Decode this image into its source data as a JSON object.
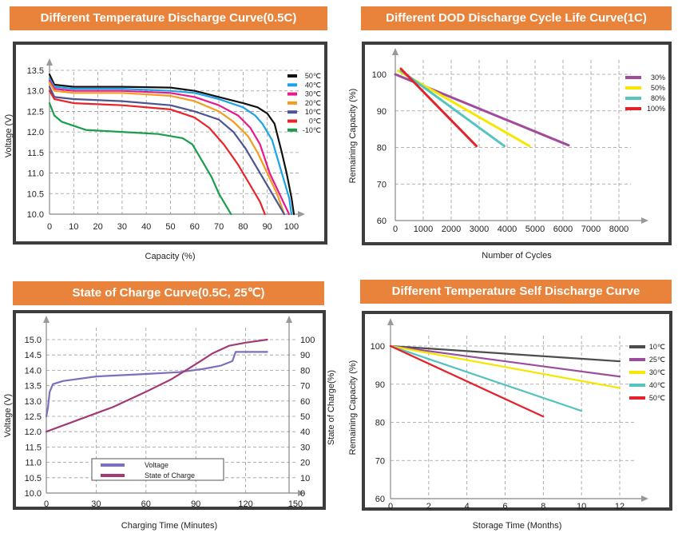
{
  "chart_data": [
    {
      "type": "line",
      "title": "Different Temperature Discharge Curve(0.5C)",
      "xlabel": "Capacity (%)",
      "ylabel": "Voltage (V)",
      "xlim": [
        0,
        105
      ],
      "ylim": [
        10.0,
        13.8
      ],
      "xticks": [
        "0",
        "10",
        "20",
        "30",
        "40",
        "50",
        "60",
        "70",
        "80",
        "90",
        "100"
      ],
      "yticks": [
        "10.0",
        "10.5",
        "11.0",
        "11.5",
        "12.0",
        "12.5",
        "13.0",
        "13.5"
      ],
      "legend": "top-right",
      "series": [
        {
          "name": "50℃",
          "color": "#111111",
          "points": [
            [
              0,
              13.4
            ],
            [
              2,
              13.15
            ],
            [
              10,
              13.1
            ],
            [
              30,
              13.1
            ],
            [
              50,
              13.08
            ],
            [
              60,
              13.0
            ],
            [
              70,
              12.85
            ],
            [
              80,
              12.7
            ],
            [
              86,
              12.6
            ],
            [
              90,
              12.45
            ],
            [
              93,
              12.2
            ],
            [
              96,
              11.5
            ],
            [
              98,
              11.0
            ],
            [
              100,
              10.4
            ],
            [
              101,
              10.0
            ]
          ]
        },
        {
          "name": "40℃",
          "color": "#1aa3e8",
          "points": [
            [
              0,
              13.3
            ],
            [
              2,
              13.1
            ],
            [
              10,
              13.05
            ],
            [
              30,
              13.05
            ],
            [
              50,
              13.0
            ],
            [
              60,
              12.95
            ],
            [
              70,
              12.8
            ],
            [
              80,
              12.6
            ],
            [
              85,
              12.4
            ],
            [
              88,
              12.2
            ],
            [
              92,
              11.8
            ],
            [
              96,
              11.0
            ],
            [
              99,
              10.4
            ],
            [
              100,
              10.0
            ]
          ]
        },
        {
          "name": "30℃",
          "color": "#e8198b",
          "points": [
            [
              0,
              13.25
            ],
            [
              2,
              13.05
            ],
            [
              10,
              13.0
            ],
            [
              30,
              13.0
            ],
            [
              50,
              12.95
            ],
            [
              60,
              12.85
            ],
            [
              70,
              12.65
            ],
            [
              78,
              12.4
            ],
            [
              83,
              12.1
            ],
            [
              87,
              11.7
            ],
            [
              91,
              11.0
            ],
            [
              95,
              10.5
            ],
            [
              99,
              10.0
            ]
          ]
        },
        {
          "name": "20℃",
          "color": "#f39c1f",
          "points": [
            [
              0,
              13.2
            ],
            [
              2,
              13.0
            ],
            [
              10,
              12.95
            ],
            [
              30,
              12.95
            ],
            [
              50,
              12.88
            ],
            [
              60,
              12.75
            ],
            [
              70,
              12.5
            ],
            [
              76,
              12.25
            ],
            [
              82,
              11.9
            ],
            [
              86,
              11.5
            ],
            [
              90,
              11.0
            ],
            [
              94,
              10.5
            ],
            [
              97,
              10.0
            ]
          ]
        },
        {
          "name": "10℃",
          "color": "#4a5592",
          "points": [
            [
              0,
              13.1
            ],
            [
              2,
              12.85
            ],
            [
              10,
              12.8
            ],
            [
              30,
              12.75
            ],
            [
              50,
              12.65
            ],
            [
              60,
              12.5
            ],
            [
              70,
              12.3
            ],
            [
              76,
              12.0
            ],
            [
              81,
              11.6
            ],
            [
              87,
              11.0
            ],
            [
              92,
              10.5
            ],
            [
              97,
              10.0
            ]
          ]
        },
        {
          "name": "0℃",
          "color": "#e8232a",
          "points": [
            [
              0,
              13.0
            ],
            [
              2,
              12.8
            ],
            [
              10,
              12.7
            ],
            [
              30,
              12.65
            ],
            [
              50,
              12.55
            ],
            [
              60,
              12.35
            ],
            [
              66,
              12.1
            ],
            [
              72,
              11.7
            ],
            [
              78,
              11.2
            ],
            [
              83,
              10.7
            ],
            [
              87,
              10.3
            ],
            [
              89,
              10.0
            ]
          ]
        },
        {
          "name": "-10℃",
          "color": "#1a9e4b",
          "points": [
            [
              0,
              12.7
            ],
            [
              2,
              12.4
            ],
            [
              5,
              12.25
            ],
            [
              15,
              12.05
            ],
            [
              30,
              12.0
            ],
            [
              45,
              11.95
            ],
            [
              55,
              11.85
            ],
            [
              59,
              11.7
            ],
            [
              63,
              11.3
            ],
            [
              67,
              10.9
            ],
            [
              70,
              10.5
            ],
            [
              73,
              10.2
            ],
            [
              75,
              10.0
            ]
          ]
        }
      ]
    },
    {
      "type": "line",
      "title": "Different DOD Discharge Cycle Life Curve(1C)",
      "xlabel": "Number of Cycles",
      "ylabel": "Remaining Capacity (%)",
      "xlim": [
        0,
        8800
      ],
      "ylim": [
        60,
        105
      ],
      "xticks": [
        "0",
        "1000",
        "2000",
        "3000",
        "4000",
        "5000",
        "6000",
        "7000",
        "8000"
      ],
      "yticks": [
        "60",
        "70",
        "80",
        "90",
        "100"
      ],
      "legend": "top-right",
      "series": [
        {
          "name": "30%",
          "color": "#a24a9c",
          "points": [
            [
              0,
              100
            ],
            [
              6200,
              80.6
            ]
          ]
        },
        {
          "name": "50%",
          "color": "#f7e600",
          "points": [
            [
              100,
              101
            ],
            [
              4800,
              80.4
            ]
          ]
        },
        {
          "name": "80%",
          "color": "#55c3c0",
          "points": [
            [
              200,
              101
            ],
            [
              3900,
              80.4
            ]
          ]
        },
        {
          "name": "100%",
          "color": "#e3232c",
          "points": [
            [
              200,
              101.5
            ],
            [
              2900,
              80.4
            ]
          ]
        }
      ]
    },
    {
      "type": "line",
      "title": "State of Charge Curve(0.5C, 25℃)",
      "xlabel": "Charging Time (Minutes)",
      "ylabel": "Voltage (V)",
      "ylabel2": "State of Charge(%)",
      "xlim": [
        0,
        150
      ],
      "ylim": [
        10.0,
        15.5
      ],
      "ylim2": [
        0,
        110
      ],
      "xticks": [
        "0",
        "30",
        "60",
        "90",
        "120",
        "150"
      ],
      "yticks": [
        "10.0",
        "10.5",
        "11.0",
        "11.5",
        "12.0",
        "12.5",
        "13.0",
        "13.5",
        "14.0",
        "14.5",
        "15.0"
      ],
      "yticks2": [
        "0",
        "10",
        "20",
        "30",
        "40",
        "50",
        "60",
        "70",
        "80",
        "90",
        "100"
      ],
      "legend": "bottom-left",
      "series": [
        {
          "name": "Voltage",
          "color": "#7b6fc0",
          "axis": "left",
          "points": [
            [
              0,
              12.5
            ],
            [
              1,
              12.8
            ],
            [
              2,
              13.3
            ],
            [
              4,
              13.55
            ],
            [
              10,
              13.65
            ],
            [
              30,
              13.8
            ],
            [
              60,
              13.88
            ],
            [
              80,
              13.94
            ],
            [
              95,
              14.05
            ],
            [
              105,
              14.15
            ],
            [
              112,
              14.3
            ],
            [
              114,
              14.6
            ],
            [
              115,
              14.6
            ],
            [
              133,
              14.6
            ]
          ]
        },
        {
          "name": "State of Charge",
          "color": "#a23b73",
          "axis": "right",
          "points": [
            [
              0,
              40
            ],
            [
              20,
              48
            ],
            [
              40,
              56
            ],
            [
              60,
              66
            ],
            [
              75,
              74
            ],
            [
              90,
              84
            ],
            [
              100,
              91
            ],
            [
              110,
              96
            ],
            [
              120,
              98
            ],
            [
              133,
              100
            ]
          ]
        }
      ]
    },
    {
      "type": "line",
      "title": "Different Temperature Self Discharge Curve",
      "xlabel": "Storage Time (Months)",
      "ylabel": "Remaining Capacity (%)",
      "xlim": [
        0,
        13
      ],
      "ylim": [
        60,
        105
      ],
      "xticks": [
        "0",
        "2",
        "4",
        "6",
        "8",
        "10",
        "12"
      ],
      "yticks": [
        "60",
        "70",
        "80",
        "90",
        "100"
      ],
      "legend": "top-right",
      "series": [
        {
          "name": "10℃",
          "color": "#4d4d4d",
          "points": [
            [
              0,
              100
            ],
            [
              12,
              96
            ]
          ]
        },
        {
          "name": "25℃",
          "color": "#9b4d9b",
          "points": [
            [
              0,
              100
            ],
            [
              12,
              92
            ]
          ]
        },
        {
          "name": "30℃",
          "color": "#f7e600",
          "points": [
            [
              0,
              100
            ],
            [
              12,
              89
            ]
          ]
        },
        {
          "name": "40℃",
          "color": "#55c3c0",
          "points": [
            [
              0,
              100
            ],
            [
              10,
              83
            ]
          ]
        },
        {
          "name": "50℃",
          "color": "#e3232c",
          "points": [
            [
              0,
              100
            ],
            [
              8,
              81.5
            ]
          ]
        }
      ]
    }
  ]
}
